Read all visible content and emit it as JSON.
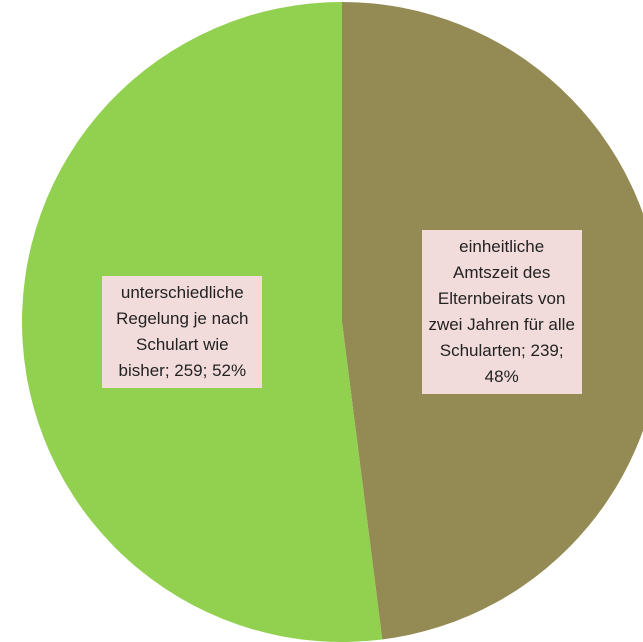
{
  "chart_data": {
    "type": "pie",
    "labels": [
      "einheitliche Amtszeit des Elternbeirats von zwei Jahren für alle Schularten; 239; 48%",
      "unterschiedliche Regelung je nach Schulart wie bisher; 259; 52%"
    ],
    "values": [
      239,
      259
    ],
    "colors": [
      "#948a54",
      "#92d050"
    ]
  }
}
